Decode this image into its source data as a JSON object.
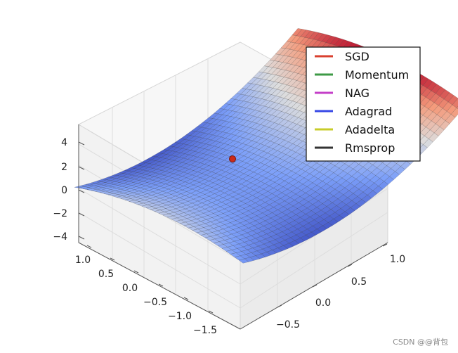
{
  "chart_data": {
    "type": "surface3d",
    "title": "",
    "function": "z = x^2 - y^2",
    "x_range": [
      -2,
      1
    ],
    "y_range": [
      -1,
      1
    ],
    "z_ticks": [
      "4",
      "2",
      "0",
      "−2",
      "−4"
    ],
    "x_ticks": [
      "1.0",
      "0.5",
      "0.0",
      "−0.5",
      "−1.0",
      "−1.5"
    ],
    "y_ticks": [
      "1.0",
      "0.5",
      "0.0",
      "−0.5"
    ],
    "start_point": {
      "x": 0.7,
      "y": 0.0,
      "color": "#cc2a1a"
    },
    "colormap": "coolwarm",
    "legend": {
      "position": "top-right",
      "entries": [
        {
          "label": "SGD",
          "color": "#d9402f"
        },
        {
          "label": "Momentum",
          "color": "#3d9a46"
        },
        {
          "label": "NAG",
          "color": "#c43fc8"
        },
        {
          "label": "Adagrad",
          "color": "#3748e6"
        },
        {
          "label": "Adadelta",
          "color": "#c8cc2a"
        },
        {
          "label": "Rmsprop",
          "color": "#333333"
        }
      ]
    }
  },
  "watermark": "CSDN @@背包"
}
